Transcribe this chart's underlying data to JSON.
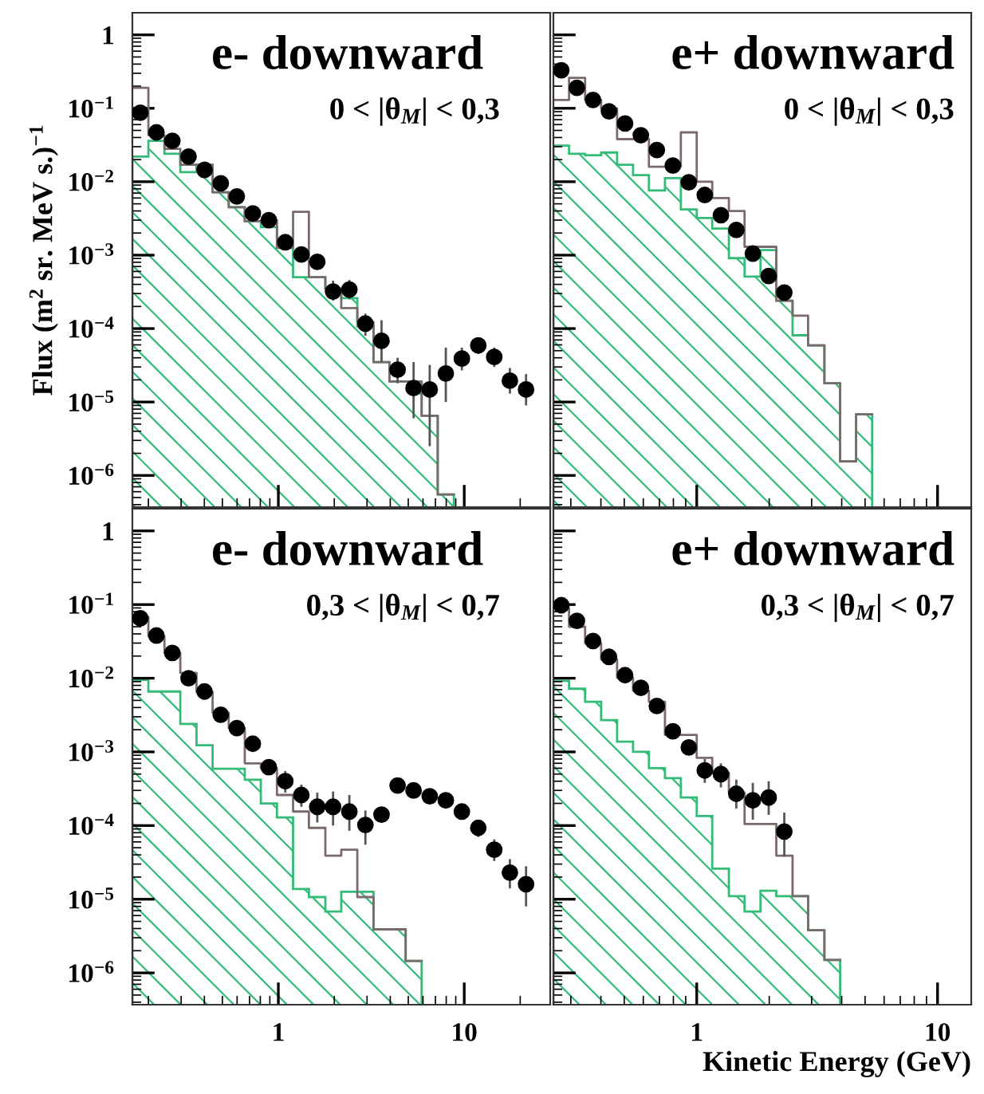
{
  "chart_data": [
    {
      "type": "scatter",
      "title": "e- downward",
      "annotations": [
        "0 < |θ$_{M}$| < 0,3"
      ],
      "ylabel": "Flux (m$^{2}$ sr. MeV s.)$^{−1}$",
      "log": "xy",
      "tick_labels": "y",
      "xlim": [
        0.164,
        29
      ],
      "ylim": [
        3.7e-07,
        2
      ],
      "xticks": [
        1,
        10
      ],
      "yticks": [
        {
          "value": 1e-06,
          "label": "10$^{−6}$"
        },
        {
          "value": 1e-05,
          "label": "10$^{−5}$"
        },
        {
          "value": 0.0001,
          "label": "10$^{−4}$"
        },
        {
          "value": 0.001,
          "label": "10$^{−3}$"
        },
        {
          "value": 0.01,
          "label": "10$^{−2}$"
        },
        {
          "value": 0.1,
          "label": "10$^{−1}$"
        },
        1
      ],
      "series": [
        {
          "type": "histogram",
          "color": "#33bb77",
          "bins": [
            0.164,
            0.2,
            0.244,
            0.297,
            0.363,
            0.443,
            0.541,
            0.66,
            0.805,
            0.983,
            1.2,
            1.46,
            1.79,
            2.18,
            2.66,
            3.25,
            3.96,
            4.84,
            5.9,
            7.2,
            8.79
          ],
          "values": [
            0.022,
            0.036,
            0.024,
            0.0135,
            0.017,
            0.0072,
            0.0045,
            0.0029,
            0.0024,
            0.00126,
            0.0005,
            0.0005,
            0.00035,
            0.00026,
            0.000107,
            3.5e-05,
            1.9e-05,
            1.9e-05,
            6.5e-06,
            5.5e-07
          ]
        },
        {
          "type": "step",
          "color": "#7a6a6a",
          "x": [
            0.164,
            0.2,
            0.244,
            0.297,
            0.363,
            0.443,
            0.541,
            0.66,
            0.805,
            0.983,
            1.2,
            1.46,
            1.79,
            2.18,
            2.66,
            3.25,
            3.96,
            4.84,
            5.9,
            7.2,
            8.79
          ],
          "values": [
            0.19,
            0.043,
            0.028,
            0.017,
            0.017,
            0.0072,
            0.0045,
            0.0029,
            0.003,
            0.00126,
            0.0039,
            0.0005,
            0.00035,
            0.00019,
            0.000123,
            3.5e-05,
            1.9e-05,
            1.9e-05,
            6.5e-06,
            5.5e-07,
            5.5e-07
          ]
        },
        {
          "marker": "circle",
          "color": "#000000",
          "x": [
            0.181,
            0.221,
            0.269,
            0.329,
            0.401,
            0.49,
            0.598,
            0.729,
            0.889,
            1.09,
            1.33,
            1.62,
            1.97,
            2.41,
            2.94,
            3.59,
            4.38,
            5.34,
            6.52,
            7.96,
            9.71,
            11.9,
            14.5,
            17.6,
            21.5
          ],
          "values": [
            0.087,
            0.047,
            0.036,
            0.022,
            0.0145,
            0.0095,
            0.0063,
            0.0037,
            0.003,
            0.0015,
            0.00102,
            0.00081,
            0.00032,
            0.00034,
            0.000117,
            6.8e-05,
            2.75e-05,
            1.55e-05,
            1.48e-05,
            2.45e-05,
            3.9e-05,
            5.9e-05,
            4.1e-05,
            1.95e-05,
            1.48e-05
          ],
          "errors": [
            null,
            null,
            null,
            null,
            null,
            null,
            null,
            null,
            null,
            null,
            null,
            null,
            [
              0.00024,
              0.00045
            ],
            [
              0.00025,
              0.00046
            ],
            [
              8e-05,
              0.00016
            ],
            [
              3.5e-05,
              0.00013
            ],
            [
              1.8e-05,
              4e-05
            ],
            [
              6e-06,
              3.5e-05
            ],
            [
              2.5e-06,
              3.2e-05
            ],
            [
              1e-05,
              5.5e-05
            ],
            [
              2.7e-05,
              5.5e-05
            ],
            [
              4.5e-05,
              7.5e-05
            ],
            [
              3e-05,
              5.5e-05
            ],
            [
              1.3e-05,
              2.9e-05
            ],
            [
              9e-06,
              2.4e-05
            ]
          ]
        }
      ]
    },
    {
      "type": "scatter",
      "title": "e+ downward",
      "annotations": [
        "0 < |θ$_{M}$| < 0,3"
      ],
      "log": "xy",
      "tick_labels": false,
      "xlim": [
        0.254,
        13.8
      ],
      "ylim": [
        3.7e-07,
        2
      ],
      "xticks": [
        1,
        10
      ],
      "yticks": [
        {
          "value": 1e-06,
          "label": null
        },
        {
          "value": 1e-05,
          "label": null
        },
        {
          "value": 0.0001,
          "label": null
        },
        {
          "value": 0.001,
          "label": null
        },
        {
          "value": 0.01,
          "label": null
        },
        {
          "value": 0.1,
          "label": null
        },
        {
          "value": 1,
          "label": null
        }
      ],
      "series": [
        {
          "type": "histogram",
          "color": "#33bb77",
          "bins": [
            0.254,
            0.295,
            0.344,
            0.401,
            0.467,
            0.544,
            0.633,
            0.738,
            0.859,
            1.0,
            1.16,
            1.36,
            1.58,
            1.84,
            2.14,
            2.5,
            2.9,
            3.39,
            3.94,
            4.59,
            5.35
          ],
          "values": [
            0.031,
            0.024,
            0.023,
            0.025,
            0.017,
            0.0123,
            0.0076,
            0.0112,
            0.0042,
            0.0032,
            0.0023,
            0.00091,
            0.00051,
            0.00117,
            0.00024,
            8.1e-05,
            5.9e-05,
            1.8e-05,
            1.55e-06,
            6.8e-06
          ]
        },
        {
          "type": "step",
          "color": "#7a6a6a",
          "x": [
            0.254,
            0.295,
            0.344,
            0.401,
            0.467,
            0.544,
            0.633,
            0.738,
            0.859,
            1.0,
            1.16,
            1.36,
            1.58,
            1.84,
            2.14,
            2.5,
            2.9,
            3.39,
            3.94,
            4.59,
            5.35
          ],
          "values": [
            0.13,
            0.26,
            0.13,
            0.1,
            0.038,
            0.038,
            0.016,
            0.016,
            0.047,
            0.01,
            0.006,
            0.004,
            0.0013,
            0.0013,
            0.00024,
            0.00015,
            5.9e-05,
            1.8e-05,
            1.55e-06,
            6.8e-06,
            6.8e-06
          ]
        },
        {
          "marker": "circle",
          "color": "#000000",
          "x": [
            0.274,
            0.318,
            0.371,
            0.432,
            0.504,
            0.586,
            0.683,
            0.796,
            0.927,
            1.08,
            1.26,
            1.46,
            1.71,
            1.99,
            2.31
          ],
          "values": [
            0.33,
            0.19,
            0.13,
            0.091,
            0.062,
            0.043,
            0.027,
            0.0166,
            0.0098,
            0.0066,
            0.0035,
            0.0022,
            0.00105,
            0.00052,
            0.00031
          ]
        }
      ]
    },
    {
      "type": "scatter",
      "title": "e- downward",
      "annotations": [
        "0,3 < |θ$_{M}$| < 0,7"
      ],
      "log": "xy",
      "xlim": [
        0.164,
        29
      ],
      "ylim": [
        3.7e-07,
        2
      ],
      "xticks": [
        1,
        10
      ],
      "yticks": [
        {
          "value": 1e-06,
          "label": "10$^{−6}$"
        },
        {
          "value": 1e-05,
          "label": "10$^{−5}$"
        },
        {
          "value": 0.0001,
          "label": "10$^{−4}$"
        },
        {
          "value": 0.001,
          "label": "10$^{−3}$"
        },
        {
          "value": 0.01,
          "label": "10$^{−2}$"
        },
        {
          "value": 0.1,
          "label": "10$^{−1}$"
        },
        1
      ],
      "series": [
        {
          "type": "histogram",
          "color": "#33bb77",
          "bins": [
            0.164,
            0.2,
            0.244,
            0.297,
            0.363,
            0.443,
            0.541,
            0.66,
            0.805,
            0.983,
            1.2,
            1.46,
            1.79,
            2.18,
            2.66,
            3.25,
            3.96,
            4.84,
            5.9
          ],
          "values": [
            0.0095,
            0.0066,
            0.0066,
            0.0024,
            0.00123,
            0.00059,
            0.00059,
            0.00042,
            0.0002,
            0.000129,
            1.38e-05,
            1.07e-05,
            6.8e-06,
            1.26e-05,
            1.26e-05,
            3.9e-06,
            3.9e-06,
            1.45e-06
          ]
        },
        {
          "type": "step",
          "color": "#7a6a6a",
          "x": [
            0.164,
            0.2,
            0.244,
            0.297,
            0.363,
            0.443,
            0.541,
            0.66,
            0.805,
            0.983,
            1.2,
            1.46,
            1.79,
            2.18,
            2.66,
            3.25,
            3.96,
            4.84,
            5.9
          ],
          "values": [
            0.068,
            0.037,
            0.022,
            0.0118,
            0.0065,
            0.0034,
            0.0021,
            0.0007,
            0.0006,
            0.00026,
            0.000155,
            9.3e-05,
            3.9e-05,
            4.7e-05,
            1.07e-05,
            3.9e-06,
            3.9e-06,
            1.45e-06,
            1.45e-06
          ]
        },
        {
          "marker": "circle",
          "color": "#000000",
          "x": [
            0.181,
            0.221,
            0.269,
            0.329,
            0.401,
            0.49,
            0.598,
            0.729,
            0.889,
            1.09,
            1.33,
            1.62,
            1.97,
            2.41,
            2.94,
            3.59,
            4.38,
            5.34,
            6.52,
            7.96,
            9.71,
            11.9,
            14.5,
            17.6,
            21.5
          ],
          "values": [
            0.065,
            0.038,
            0.022,
            0.01,
            0.0066,
            0.0032,
            0.0021,
            0.00129,
            0.00062,
            0.0004,
            0.00026,
            0.00018,
            0.00018,
            0.000155,
            0.000102,
            0.000141,
            0.00035,
            0.0003,
            0.00025,
            0.00022,
            0.000155,
            9.3e-05,
            4.7e-05,
            2.3e-05,
            1.6e-05
          ],
          "errors": [
            null,
            null,
            null,
            null,
            null,
            null,
            null,
            null,
            null,
            [
              0.00028,
              0.00055
            ],
            [
              0.00018,
              0.00036
            ],
            [
              0.00011,
              0.00028
            ],
            [
              0.0001,
              0.00029
            ],
            [
              8.5e-05,
              0.00026
            ],
            [
              5.5e-05,
              0.00016
            ],
            null,
            null,
            null,
            null,
            null,
            null,
            [
              7e-05,
              0.00012
            ],
            [
              3.3e-05,
              6.5e-05
            ],
            [
              1.4e-05,
              3.5e-05
            ],
            [
              8e-06,
              2.8e-05
            ]
          ]
        }
      ]
    },
    {
      "type": "scatter",
      "title": "e+ downward",
      "annotations": [
        "0,3 < |θ$_{M}$| < 0,7"
      ],
      "xlabel": "Kinetic Energy (GeV)",
      "log": "xy",
      "tick_labels": "x",
      "xlim": [
        0.254,
        13.8
      ],
      "ylim": [
        3.7e-07,
        2
      ],
      "xticks": [
        1,
        10
      ],
      "yticks": [
        {
          "value": 1e-06,
          "label": null
        },
        {
          "value": 1e-05,
          "label": null
        },
        {
          "value": 0.0001,
          "label": null
        },
        {
          "value": 0.001,
          "label": null
        },
        {
          "value": 0.01,
          "label": null
        },
        {
          "value": 0.1,
          "label": null
        },
        {
          "value": 1,
          "label": null
        }
      ],
      "series": [
        {
          "type": "histogram",
          "color": "#33bb77",
          "bins": [
            0.254,
            0.295,
            0.344,
            0.401,
            0.467,
            0.544,
            0.633,
            0.738,
            0.859,
            1.0,
            1.16,
            1.36,
            1.58,
            1.84,
            2.14,
            2.5,
            2.9,
            3.39,
            3.94
          ],
          "values": [
            0.0092,
            0.0072,
            0.0048,
            0.0027,
            0.00138,
            0.001,
            0.0006,
            0.00044,
            0.00024,
            0.000135,
            2.6e-05,
            1.1e-05,
            6.8e-06,
            1.3e-05,
            1.1e-05,
            1.1e-05,
            3.8e-06,
            1.5e-06
          ]
        },
        {
          "type": "step",
          "color": "#7a6a6a",
          "x": [
            0.254,
            0.295,
            0.344,
            0.401,
            0.467,
            0.544,
            0.633,
            0.738,
            0.859,
            1.0,
            1.16,
            1.36,
            1.58,
            1.84,
            2.14,
            2.5,
            2.9,
            3.39,
            3.94
          ],
          "values": [
            0.089,
            0.05,
            0.03,
            0.018,
            0.0102,
            0.0068,
            0.0048,
            0.0017,
            0.0017,
            0.00083,
            0.00052,
            0.00028,
            0.000105,
            0.000105,
            3.9e-05,
            1.1e-05,
            3.8e-06,
            1.5e-06,
            1.5e-06
          ]
        },
        {
          "marker": "circle",
          "color": "#000000",
          "x": [
            0.274,
            0.318,
            0.371,
            0.432,
            0.504,
            0.586,
            0.683,
            0.796,
            0.927,
            1.08,
            1.26,
            1.46,
            1.71,
            1.99,
            2.31
          ],
          "values": [
            0.098,
            0.06,
            0.032,
            0.0195,
            0.011,
            0.0074,
            0.0042,
            0.0019,
            0.00115,
            0.00056,
            0.0005,
            0.00027,
            0.00022,
            0.00024,
            8.3e-05
          ],
          "errors": [
            null,
            null,
            null,
            null,
            null,
            null,
            null,
            null,
            null,
            [
              0.00038,
              0.0008
            ],
            [
              0.00033,
              0.0007
            ],
            [
              0.00017,
              0.00042
            ],
            [
              0.00012,
              0.00038
            ],
            [
              0.00014,
              0.0004
            ],
            [
              3.8e-05,
              0.00015
            ]
          ]
        }
      ]
    }
  ]
}
